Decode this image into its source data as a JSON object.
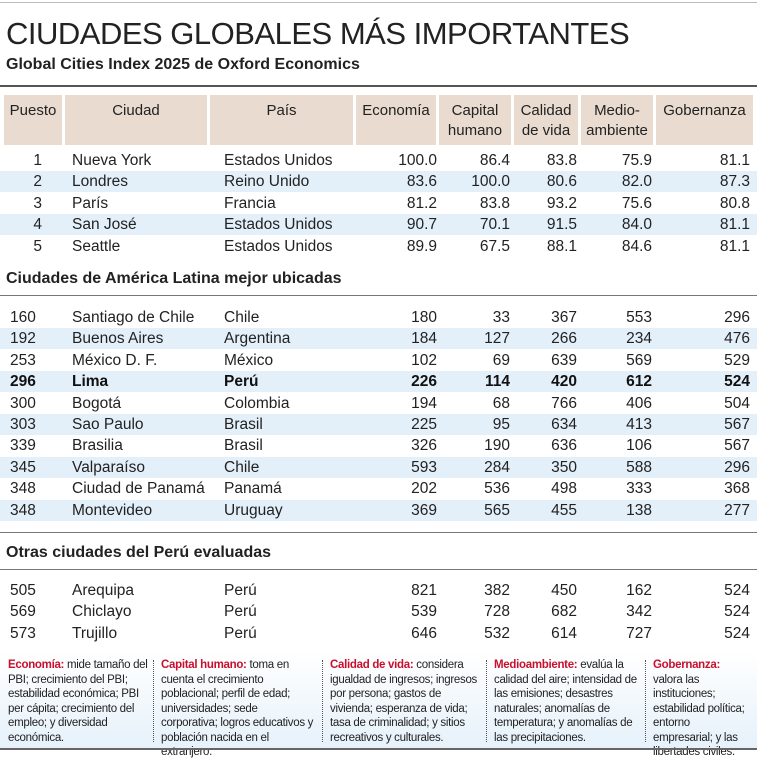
{
  "title": "CIUDADES GLOBALES MÁS IMPORTANTES",
  "subtitle": "Global Cities Index 2025 de Oxford Economics",
  "headers": [
    "Puesto",
    "Ciudad",
    "País",
    "Economía",
    "Capital humano",
    "Calidad de vida",
    "Medio-ambiente",
    "Gobernanza"
  ],
  "top5": [
    [
      "1",
      "Nueva York",
      "Estados Unidos",
      "100.0",
      "86.4",
      "83.8",
      "75.9",
      "81.1"
    ],
    [
      "2",
      "Londres",
      "Reino Unido",
      "83.6",
      "100.0",
      "80.6",
      "82.0",
      "87.3"
    ],
    [
      "3",
      "París",
      "Francia",
      "81.2",
      "83.8",
      "93.2",
      "75.6",
      "80.8"
    ],
    [
      "4",
      "San José",
      "Estados Unidos",
      "90.7",
      "70.1",
      "91.5",
      "84.0",
      "81.1"
    ],
    [
      "5",
      "Seattle",
      "Estados Unidos",
      "89.9",
      "67.5",
      "88.1",
      "84.6",
      "81.1"
    ]
  ],
  "latam_title": "Ciudades de América Latina mejor ubicadas",
  "latam": [
    [
      "160",
      "Santiago de Chile",
      "Chile",
      "180",
      "33",
      "367",
      "553",
      "296"
    ],
    [
      "192",
      "Buenos Aires",
      "Argentina",
      "184",
      "127",
      "266",
      "234",
      "476"
    ],
    [
      "253",
      "México D. F.",
      "México",
      "102",
      "69",
      "639",
      "569",
      "529"
    ],
    [
      "296",
      "Lima",
      "Perú",
      "226",
      "114",
      "420",
      "612",
      "524"
    ],
    [
      "300",
      "Bogotá",
      "Colombia",
      "194",
      "68",
      "766",
      "406",
      "504"
    ],
    [
      "303",
      "Sao Paulo",
      "Brasil",
      "225",
      "95",
      "634",
      "413",
      "567"
    ],
    [
      "339",
      "Brasilia",
      "Brasil",
      "326",
      "190",
      "636",
      "106",
      "567"
    ],
    [
      "345",
      "Valparaíso",
      "Chile",
      "593",
      "284",
      "350",
      "588",
      "296"
    ],
    [
      "348",
      "Ciudad de Panamá",
      "Panamá",
      "202",
      "536",
      "498",
      "333",
      "368"
    ],
    [
      "348",
      "Montevideo",
      "Uruguay",
      "369",
      "565",
      "455",
      "138",
      "277"
    ]
  ],
  "peru_title": "Otras ciudades del Perú evaluadas",
  "peru": [
    [
      "505",
      "Arequipa",
      "Perú",
      "821",
      "382",
      "450",
      "162",
      "524"
    ],
    [
      "569",
      "Chiclayo",
      "Perú",
      "539",
      "728",
      "682",
      "342",
      "524"
    ],
    [
      "573",
      "Trujillo",
      "Perú",
      "646",
      "532",
      "614",
      "727",
      "524"
    ]
  ],
  "notes": [
    {
      "term": "Economía:",
      "text": "mide tamaño del PBI; crecimiento del PBI; estabilidad económica; PBI per cápita; crecimiento del empleo; y diversidad económica."
    },
    {
      "term": "Capital humano:",
      "text": "toma en cuenta el crecimiento poblacional; perfil de edad; universidades; sede corporativa; logros educativos y población nacida en el extranjero."
    },
    {
      "term": "Calidad de vida:",
      "text": "considera igualdad de ingresos; ingresos por persona; gastos de vivienda; esperanza de vida; tasa de criminalidad; y sitios recreativos y culturales."
    },
    {
      "term": "Medioambiente:",
      "text": "evalúa la calidad del aire; intensidad de las emisiones; desastres naturales; anomalías de temperatura; y anomalías de las precipitaciones."
    },
    {
      "term": "Gobernanza:",
      "text": "valora las instituciones; estabilidad política; entorno empresarial; y las libertades civiles."
    }
  ],
  "colors": {
    "header_bg": "#e9dbcf",
    "alt_row": "#e3f0fa",
    "accent": "#c8102e"
  }
}
